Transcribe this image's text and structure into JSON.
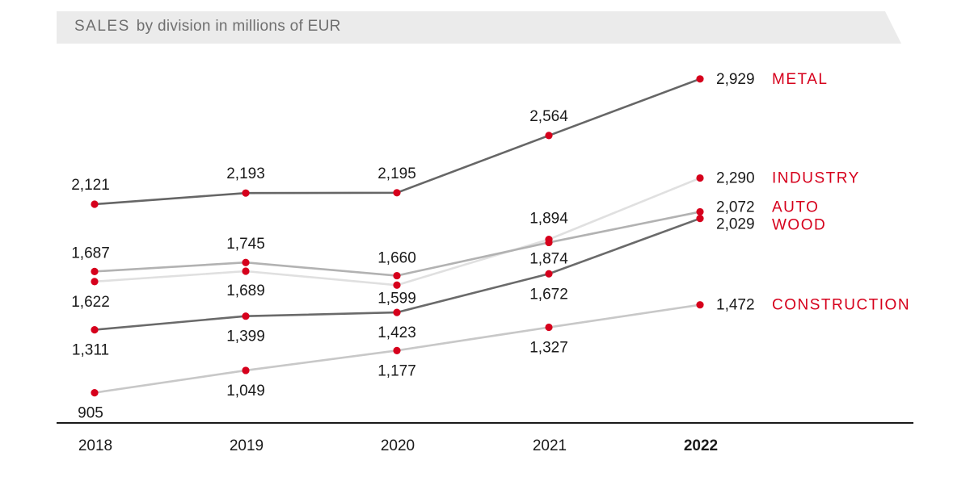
{
  "title": {
    "main": "SALES",
    "sub": "by division in millions of EUR"
  },
  "colors": {
    "marker": "#d6001c",
    "axis": "#1a1a1a",
    "title_bg": "#ebebeb"
  },
  "chart_data": {
    "type": "line",
    "title": "SALES by division in millions of EUR",
    "x": [
      "2018",
      "2019",
      "2020",
      "2021",
      "2022"
    ],
    "highlight_x": "2022",
    "series": [
      {
        "name": "METAL",
        "values": [
          2121,
          2193,
          2195,
          2564,
          2929
        ],
        "labels": [
          "2,121",
          "2,193",
          "2,195",
          "2,564",
          "2,929"
        ],
        "color": "#666666"
      },
      {
        "name": "INDUSTRY",
        "values": [
          1622,
          1689,
          1599,
          1894,
          2290
        ],
        "labels": [
          "1,622",
          "1,689",
          "1,599",
          "1,894",
          "2,290"
        ],
        "color": "#e0e0e0"
      },
      {
        "name": "AUTO",
        "values": [
          1687,
          1745,
          1660,
          1874,
          2072
        ],
        "labels": [
          "1,687",
          "1,745",
          "1,660",
          "1,874",
          "2,072"
        ],
        "color": "#b2b2b2"
      },
      {
        "name": "WOOD",
        "values": [
          1311,
          1399,
          1423,
          1672,
          2029
        ],
        "labels": [
          "1,311",
          "1,399",
          "1,423",
          "1,672",
          "2,029"
        ],
        "color": "#6a6a6a"
      },
      {
        "name": "CONSTRUCTION",
        "values": [
          905,
          1049,
          1177,
          1327,
          1472
        ],
        "labels": [
          "905",
          "1,049",
          "1,177",
          "1,327",
          "1,472"
        ],
        "color": "#c8c8c8"
      }
    ]
  }
}
